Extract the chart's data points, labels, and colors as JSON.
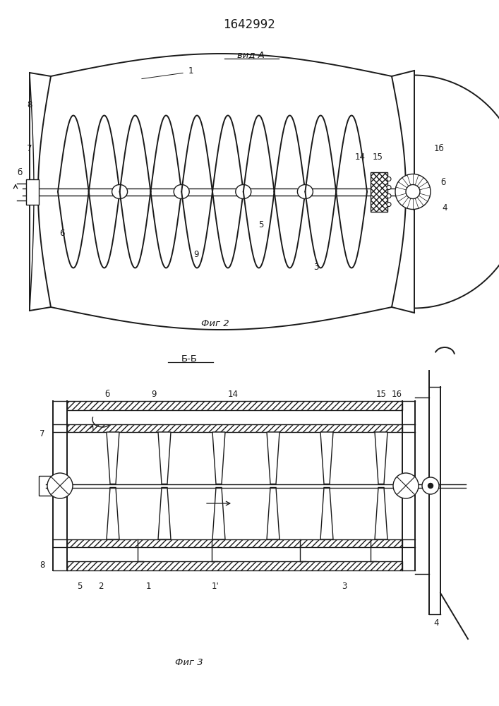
{
  "title": "1642992",
  "fig2_label": "вид А",
  "fig2_caption": "Фиг 2",
  "fig3_label": "Б-Б",
  "fig3_caption": "Фиг 3",
  "bg_color": "#ffffff",
  "line_color": "#1a1a1a",
  "title_fontsize": 12,
  "label_fontsize": 9.5,
  "small_fontsize": 8.5
}
